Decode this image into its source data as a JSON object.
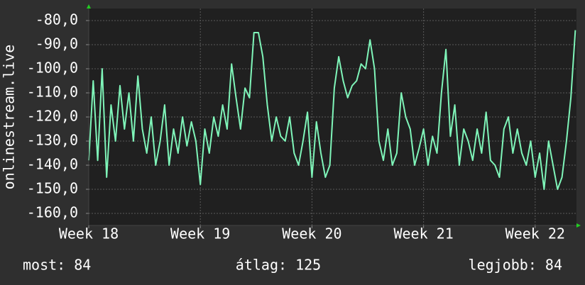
{
  "chart_data": {
    "type": "line",
    "ylabel": "onlinestream.live",
    "x": [
      18,
      18.04,
      18.08,
      18.12,
      18.16,
      18.2,
      18.24,
      18.28,
      18.32,
      18.36,
      18.4,
      18.44,
      18.48,
      18.52,
      18.56,
      18.6,
      18.64,
      18.68,
      18.72,
      18.76,
      18.8,
      18.84,
      18.88,
      18.92,
      18.96,
      19,
      19.04,
      19.08,
      19.12,
      19.16,
      19.2,
      19.24,
      19.28,
      19.32,
      19.36,
      19.4,
      19.44,
      19.48,
      19.52,
      19.56,
      19.6,
      19.64,
      19.68,
      19.72,
      19.76,
      19.8,
      19.84,
      19.88,
      19.92,
      19.96,
      20,
      20.04,
      20.08,
      20.12,
      20.16,
      20.2,
      20.24,
      20.28,
      20.32,
      20.36,
      20.4,
      20.44,
      20.48,
      20.52,
      20.56,
      20.6,
      20.64,
      20.68,
      20.72,
      20.76,
      20.8,
      20.84,
      20.88,
      20.92,
      20.96,
      21,
      21.04,
      21.08,
      21.12,
      21.16,
      21.2,
      21.24,
      21.28,
      21.32,
      21.36,
      21.4,
      21.44,
      21.48,
      21.52,
      21.56,
      21.6,
      21.64,
      21.68,
      21.72,
      21.76,
      21.8,
      21.84,
      21.88,
      21.92,
      21.96,
      22,
      22.04,
      22.08,
      22.12,
      22.16,
      22.2,
      22.24,
      22.28,
      22.32,
      22.36
    ],
    "series": [
      {
        "color": "#7ff5b9",
        "values": [
          -138,
          -105,
          -138,
          -100,
          -145,
          -115,
          -130,
          -107,
          -125,
          -110,
          -130,
          -103,
          -125,
          -135,
          -120,
          -140,
          -130,
          -115,
          -140,
          -125,
          -135,
          -120,
          -132,
          -122,
          -130,
          -148,
          -125,
          -135,
          -120,
          -128,
          -115,
          -125,
          -98,
          -112,
          -125,
          -108,
          -112,
          -85,
          -85,
          -95,
          -115,
          -130,
          -120,
          -128,
          -130,
          -120,
          -135,
          -140,
          -130,
          -118,
          -145,
          -122,
          -135,
          -145,
          -140,
          -108,
          -95,
          -105,
          -112,
          -107,
          -105,
          -98,
          -100,
          -88,
          -100,
          -130,
          -138,
          -125,
          -140,
          -135,
          -110,
          -120,
          -125,
          -140,
          -133,
          -125,
          -140,
          -128,
          -135,
          -110,
          -92,
          -128,
          -115,
          -140,
          -125,
          -130,
          -138,
          -125,
          -135,
          -118,
          -138,
          -140,
          -145,
          -125,
          -120,
          -135,
          -125,
          -135,
          -140,
          -130,
          -145,
          -135,
          -150,
          -130,
          -140,
          -150,
          -145,
          -130,
          -112,
          -84
        ]
      }
    ],
    "xlim": [
      18,
      22.37
    ],
    "xticks": [
      {
        "value": 18,
        "label": "Week 18"
      },
      {
        "value": 19,
        "label": "Week 19"
      },
      {
        "value": 20,
        "label": "Week 20"
      },
      {
        "value": 21,
        "label": "Week 21"
      },
      {
        "value": 22,
        "label": "Week 22"
      }
    ],
    "ylim": [
      -165,
      -75
    ],
    "yticks": [
      {
        "value": -160,
        "label": "-160,0"
      },
      {
        "value": -150,
        "label": "-150,0"
      },
      {
        "value": -140,
        "label": "-140,0"
      },
      {
        "value": -130,
        "label": "-130,0"
      },
      {
        "value": -120,
        "label": "-120,0"
      },
      {
        "value": -110,
        "label": "-110,0"
      },
      {
        "value": -100,
        "label": "-100,0"
      },
      {
        "value": -90,
        "label": "-90,0"
      },
      {
        "value": -80,
        "label": "-80,0"
      }
    ],
    "grid": true,
    "stats": {
      "current": "most: 84",
      "average": "átlag: 125",
      "best": "legjobb: 84"
    }
  }
}
